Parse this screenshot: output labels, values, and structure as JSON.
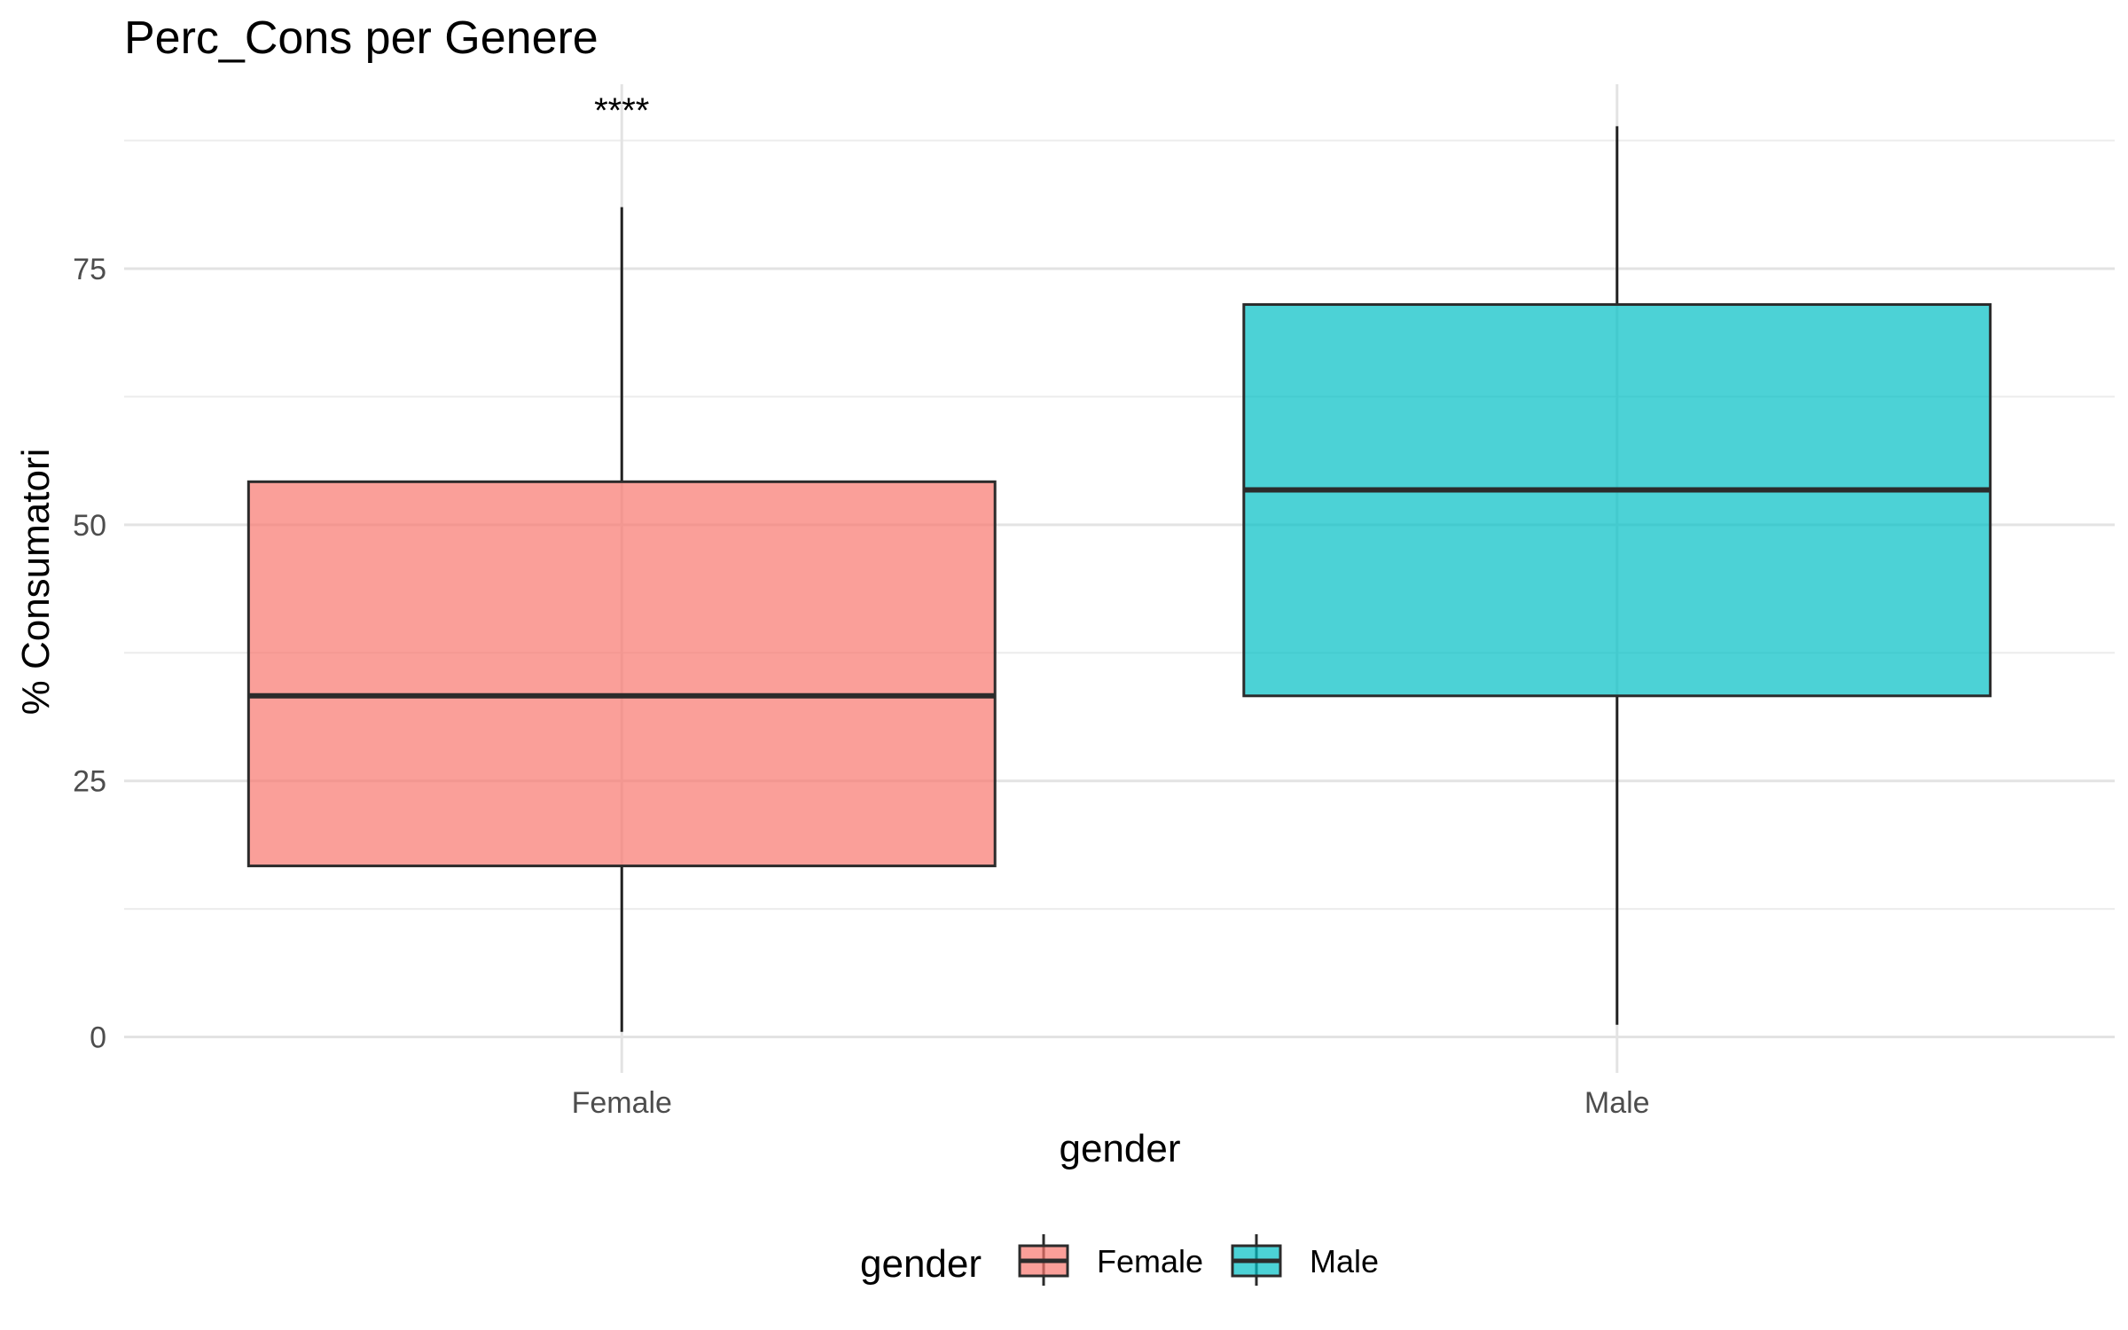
{
  "chart_data": {
    "type": "boxplot",
    "title": "Perc_Cons per Genere",
    "xlabel": "gender",
    "ylabel": "% Consumatori",
    "ylim": [
      -3.5,
      93
    ],
    "yticks": [
      0,
      25,
      50,
      75
    ],
    "grid": true,
    "categories": [
      "Female",
      "Male"
    ],
    "boxes": [
      {
        "category": "Female",
        "min": 0.5,
        "q1": 16.7,
        "median": 33.3,
        "q3": 54.2,
        "max": 81.0,
        "color": "#F8766D"
      },
      {
        "category": "Male",
        "min": 1.2,
        "q1": 33.3,
        "median": 53.4,
        "q3": 71.5,
        "max": 88.9,
        "color": "#00BFC4"
      }
    ],
    "annotations": [
      {
        "text": "****",
        "category": "Female",
        "y": 91
      }
    ],
    "legend": {
      "title": "gender",
      "placement": "bottom",
      "entries": [
        {
          "label": "Female",
          "color": "#F8766D"
        },
        {
          "label": "Male",
          "color": "#00BFC4"
        }
      ]
    }
  }
}
